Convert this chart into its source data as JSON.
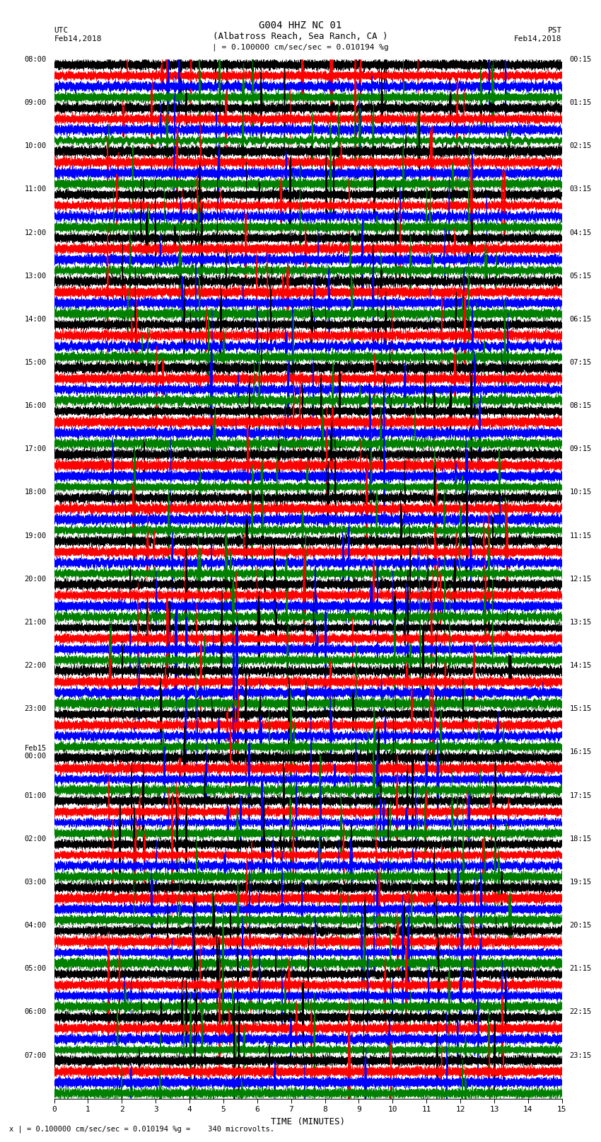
{
  "title_line1": "G004 HHZ NC 01",
  "title_line2": "(Albatross Reach, Sea Ranch, CA )",
  "scale_label": "| = 0.100000 cm/sec/sec = 0.010194 %g",
  "bottom_label": "x | = 0.100000 cm/sec/sec = 0.010194 %g =    340 microvolts.",
  "utc_label": "UTC",
  "utc_date": "Feb14,2018",
  "pst_label": "PST",
  "pst_date": "Feb14,2018",
  "xlabel": "TIME (MINUTES)",
  "left_times": [
    "08:00",
    "09:00",
    "10:00",
    "11:00",
    "12:00",
    "13:00",
    "14:00",
    "15:00",
    "16:00",
    "17:00",
    "18:00",
    "19:00",
    "20:00",
    "21:00",
    "22:00",
    "23:00",
    "Feb15\n00:00",
    "01:00",
    "02:00",
    "03:00",
    "04:00",
    "05:00",
    "06:00",
    "07:00"
  ],
  "right_times": [
    "00:15",
    "01:15",
    "02:15",
    "03:15",
    "04:15",
    "05:15",
    "06:15",
    "07:15",
    "08:15",
    "09:15",
    "10:15",
    "11:15",
    "12:15",
    "13:15",
    "14:15",
    "15:15",
    "16:15",
    "17:15",
    "18:15",
    "19:15",
    "20:15",
    "21:15",
    "22:15",
    "23:15"
  ],
  "n_rows": 24,
  "traces_per_row": 4,
  "minutes": 15,
  "colors": [
    "black",
    "red",
    "blue",
    "green"
  ],
  "bg_color": "white",
  "fig_width": 8.5,
  "fig_height": 16.13,
  "dpi": 100
}
